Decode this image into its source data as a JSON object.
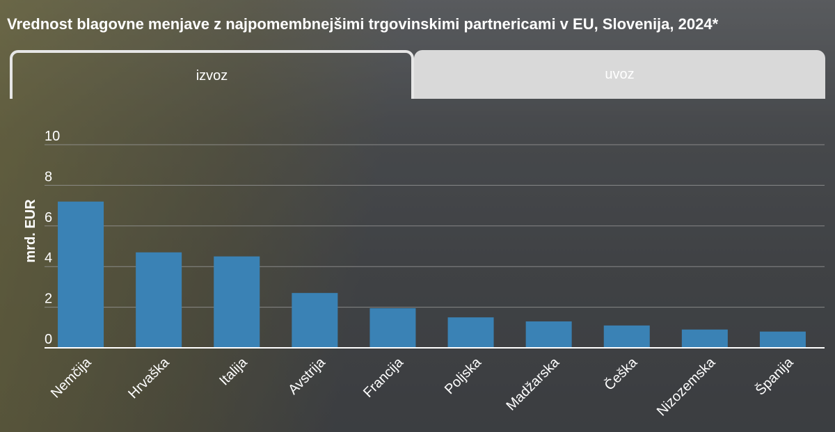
{
  "title": "Vrednost blagovne menjave z najpomembnejšimi trgovinskimi partnericami v EU, Slovenija, 2024*",
  "tabs": [
    {
      "label": "izvoz",
      "active": true
    },
    {
      "label": "uvoz",
      "active": false
    }
  ],
  "colors": {
    "bar": "#3a82b5",
    "grid": "#9a9a9a",
    "axis": "#ffffff",
    "text": "#ffffff"
  },
  "chart_data": {
    "type": "bar",
    "categories": [
      "Nemčija",
      "Hrvaška",
      "Italija",
      "Avstrija",
      "Francija",
      "Poljska",
      "Madžarska",
      "Češka",
      "Nizozemska",
      "Španija"
    ],
    "values": [
      7.2,
      4.7,
      4.5,
      2.7,
      1.95,
      1.5,
      1.3,
      1.1,
      0.9,
      0.8
    ],
    "ylabel": "mrd. EUR",
    "xlabel": "",
    "ylim": [
      0,
      10
    ],
    "yticks": [
      0,
      2,
      4,
      6,
      8,
      10
    ],
    "grid": true
  }
}
